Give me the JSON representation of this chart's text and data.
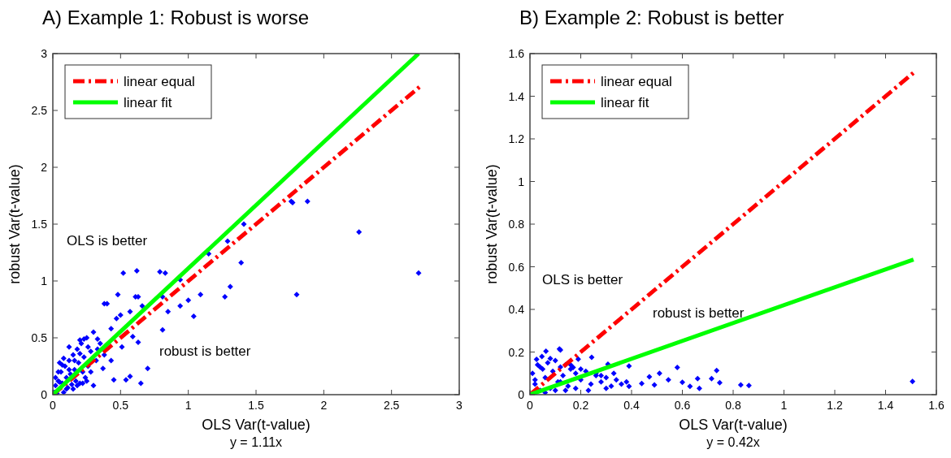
{
  "chart_data": [
    {
      "type": "scatter",
      "title": "A) Example 1: Robust is worse",
      "xlabel": "OLS Var(t-value)",
      "ylabel": "robust Var(t-value)",
      "xlim": [
        0,
        3
      ],
      "ylim": [
        0,
        3
      ],
      "xticks": [
        0,
        0.5,
        1,
        1.5,
        2,
        2.5,
        3
      ],
      "yticks": [
        0,
        0.5,
        1,
        1.5,
        2,
        2.5,
        3
      ],
      "grid": false,
      "legend": "top left",
      "annotations": [
        "OLS is better",
        "robust is better",
        "y = 1.11x"
      ],
      "series": [
        {
          "color": "#0000ff",
          "marker": "diamond",
          "x": [
            0.52,
            0.62,
            0.79,
            0.83,
            0.94,
            0.48,
            0.61,
            0.63,
            0.81,
            1.09,
            1.27,
            1.31,
            1.39,
            1.29,
            1.41,
            1.15,
            1.76,
            0.94,
            1.0,
            1.04,
            0.85,
            0.81,
            0.66,
            0.38,
            0.4,
            0.57,
            0.47,
            0.5,
            0.7,
            0.65,
            0.57,
            0.54,
            0.45,
            0.33,
            0.23,
            0.43,
            0.59,
            0.63,
            0.51,
            0.43,
            0.37,
            1.77,
            1.88,
            2.26,
            1.8,
            2.7,
            0.01,
            0.02,
            0.03,
            0.04,
            0.05,
            0.06,
            0.07,
            0.08,
            0.09,
            0.1,
            0.11,
            0.12,
            0.13,
            0.14,
            0.15,
            0.16,
            0.17,
            0.18,
            0.19,
            0.2,
            0.21,
            0.22,
            0.23,
            0.24,
            0.25,
            0.26,
            0.28,
            0.3,
            0.32,
            0.35,
            0.02,
            0.05,
            0.08,
            0.1,
            0.12,
            0.15,
            0.18,
            0.2,
            0.22,
            0.25,
            0.28,
            0.3,
            0.04,
            0.07,
            0.12,
            0.16,
            0.2,
            0.26,
            0.33,
            0.38
          ],
          "values": [
            1.07,
            1.09,
            1.08,
            1.07,
            1.01,
            0.88,
            0.86,
            0.86,
            0.86,
            0.88,
            0.86,
            0.95,
            1.16,
            1.35,
            1.5,
            1.24,
            1.7,
            0.78,
            0.83,
            0.69,
            0.73,
            0.57,
            0.78,
            0.8,
            0.8,
            0.73,
            0.67,
            0.7,
            0.23,
            0.1,
            0.16,
            0.13,
            0.13,
            0.49,
            0.49,
            0.58,
            0.51,
            0.46,
            0.42,
            0.3,
            0.23,
            1.69,
            1.7,
            1.43,
            0.88,
            1.07,
            0.02,
            0.08,
            0.01,
            0.12,
            0.11,
            0.2,
            0.1,
            0.02,
            0.25,
            0.15,
            0.06,
            0.3,
            0.18,
            0.09,
            0.35,
            0.22,
            0.12,
            0.4,
            0.28,
            0.1,
            0.45,
            0.2,
            0.33,
            0.15,
            0.5,
            0.25,
            0.38,
            0.55,
            0.3,
            0.45,
            0.15,
            0.28,
            0.32,
            0.05,
            0.42,
            0.05,
            0.08,
            0.48,
            0.1,
            0.12,
            0.2,
            0.08,
            0.2,
            0.26,
            0.22,
            0.3,
            0.36,
            0.42,
            0.4,
            0.35
          ]
        },
        {
          "type": "line",
          "name": "linear equal",
          "color": "#ff0000",
          "line_style": "dashed",
          "x": [
            0,
            2.72
          ],
          "values": [
            0,
            2.72
          ]
        },
        {
          "type": "line",
          "name": "linear fit",
          "color": "#00ff00",
          "line_style": "solid",
          "x": [
            0,
            2.7
          ],
          "values": [
            0,
            3
          ]
        }
      ]
    },
    {
      "type": "scatter",
      "title": "B) Example 2: Robust is better",
      "xlabel": "OLS Var(t-value)",
      "ylabel": "robust Var(t-value)",
      "xlim": [
        0,
        1.6
      ],
      "ylim": [
        0,
        1.6
      ],
      "xticks": [
        0,
        0.2,
        0.4,
        0.6,
        0.8,
        1,
        1.2,
        1.4,
        1.6
      ],
      "yticks": [
        0,
        0.2,
        0.4,
        0.6,
        0.8,
        1,
        1.2,
        1.4,
        1.6
      ],
      "grid": false,
      "legend": "top left",
      "annotations": [
        "OLS is better",
        "robust is better",
        "y = 0.42x"
      ],
      "series": [
        {
          "color": "#0000ff",
          "marker": "diamond",
          "x": [
            0.063,
            0.116,
            0.12,
            0.243,
            0.19,
            0.39,
            0.307,
            0.58,
            0.735,
            0.715,
            0.747,
            0.83,
            0.862,
            0.66,
            0.63,
            0.667,
            0.51,
            0.47,
            0.545,
            0.6,
            0.44,
            0.49,
            0.39,
            0.33,
            0.28,
            0.17,
            0.047,
            0.026,
            1.506,
            0.01,
            0.02,
            0.03,
            0.04,
            0.05,
            0.06,
            0.07,
            0.08,
            0.09,
            0.1,
            0.11,
            0.12,
            0.13,
            0.14,
            0.15,
            0.16,
            0.18,
            0.2,
            0.22,
            0.24,
            0.26,
            0.28,
            0.3,
            0.32,
            0.34,
            0.36,
            0.02,
            0.04,
            0.06,
            0.08,
            0.1,
            0.12,
            0.14,
            0.16,
            0.18,
            0.2,
            0.23,
            0.26,
            0.3,
            0.38
          ],
          "values": [
            0.204,
            0.214,
            0.21,
            0.175,
            0.167,
            0.134,
            0.143,
            0.128,
            0.113,
            0.075,
            0.056,
            0.046,
            0.043,
            0.075,
            0.039,
            0.03,
            0.1,
            0.084,
            0.07,
            0.058,
            0.052,
            0.046,
            0.039,
            0.1,
            0.09,
            0.128,
            0.179,
            0.166,
            0.062,
            0.1,
            0.05,
            0.14,
            0.02,
            0.12,
            0.08,
            0.15,
            0.03,
            0.11,
            0.16,
            0.06,
            0.13,
            0.09,
            0.14,
            0.04,
            0.12,
            0.1,
            0.07,
            0.11,
            0.05,
            0.09,
            0.06,
            0.08,
            0.04,
            0.07,
            0.05,
            0.07,
            0.13,
            0.01,
            0.17,
            0.02,
            0.06,
            0.02,
            0.14,
            0.03,
            0.12,
            0.02,
            0.1,
            0.03,
            0.06
          ]
        },
        {
          "type": "line",
          "name": "linear equal",
          "color": "#ff0000",
          "line_style": "dashed",
          "x": [
            0,
            1.51
          ],
          "values": [
            0,
            1.51
          ]
        },
        {
          "type": "line",
          "name": "linear fit",
          "color": "#00ff00",
          "line_style": "solid",
          "x": [
            0,
            1.51
          ],
          "values": [
            0,
            0.634
          ]
        }
      ]
    }
  ]
}
